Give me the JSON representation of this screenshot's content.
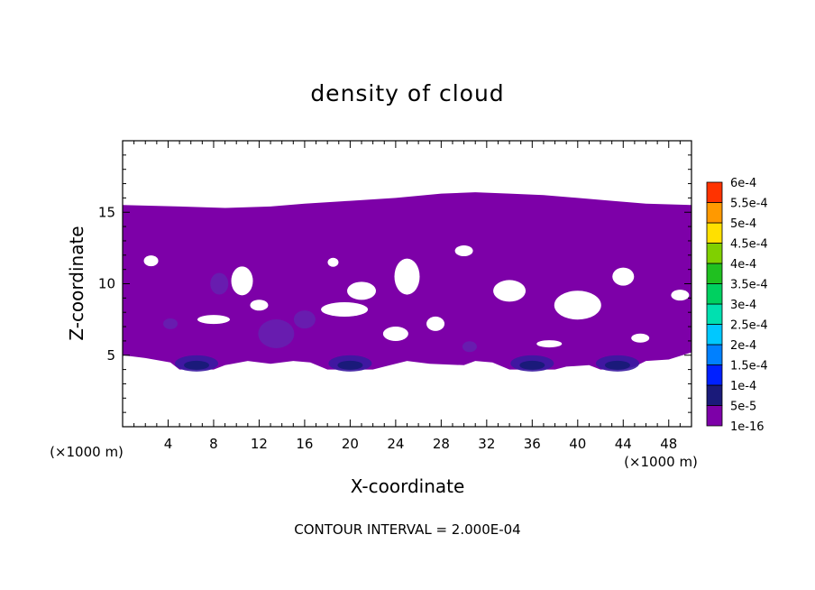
{
  "chart_data": {
    "type": "heatmap",
    "title": "density of cloud",
    "xlabel": "X-coordinate",
    "ylabel": "Z-coordinate",
    "x_unit": "(×1000 m)",
    "footer": "CONTOUR INTERVAL = 2.000E-04",
    "xlim": [
      0,
      50
    ],
    "ylim": [
      0,
      20
    ],
    "x_ticks": [
      4,
      8,
      12,
      16,
      20,
      24,
      28,
      32,
      36,
      40,
      44,
      48
    ],
    "y_ticks": [
      5,
      10,
      15
    ],
    "legend": {
      "levels": [
        "1e-16",
        "5e-5",
        "1e-4",
        "1.5e-4",
        "2e-4",
        "2.5e-4",
        "3e-4",
        "3.5e-4",
        "4e-4",
        "4.5e-4",
        "5e-4",
        "5.5e-4",
        "6e-4"
      ],
      "colors": [
        "#7d00a8",
        "#1a1a7a",
        "#0020ff",
        "#0080ff",
        "#00c8ff",
        "#00e0b0",
        "#00d060",
        "#20c020",
        "#80d000",
        "#ffe000",
        "#ff9900",
        "#ff3300",
        "#ff8080"
      ]
    },
    "cloud": {
      "top_z": 15.5,
      "base_z": 4.0,
      "dominant_level": "1e-16",
      "denser_cores": [
        {
          "x": 6.5,
          "z": 4.3,
          "level": "5e-5"
        },
        {
          "x": 20.0,
          "z": 4.3,
          "level": "5e-5"
        },
        {
          "x": 36.0,
          "z": 4.3,
          "level": "5e-5"
        },
        {
          "x": 43.5,
          "z": 4.3,
          "level": "5e-5"
        }
      ]
    }
  }
}
